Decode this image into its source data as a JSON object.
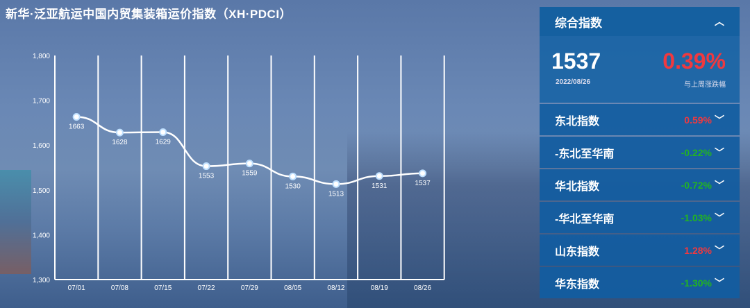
{
  "title": "新华·泛亚航运中国内贸集装箱运价指数（XH·PDCI）",
  "chart_data": {
    "type": "line",
    "categories": [
      "07/01",
      "07/08",
      "07/15",
      "07/22",
      "07/29",
      "08/05",
      "08/12",
      "08/19",
      "08/26"
    ],
    "values": [
      1663,
      1628,
      1629,
      1553,
      1559,
      1530,
      1513,
      1531,
      1537
    ],
    "yticks": [
      "1,300",
      "1,400",
      "1,500",
      "1,600",
      "1,700",
      "1,800"
    ],
    "ylim": [
      1300,
      1800
    ],
    "grid": "vertical",
    "smooth": true
  },
  "panel": {
    "header": "综合指数",
    "value": "1537",
    "date": "2022/08/26",
    "change": "0.39%",
    "change_label": "与上周涨跌幅",
    "rows": [
      {
        "label": "东北指数",
        "value": "0.59%",
        "color": "#f0393f"
      },
      {
        "label": "-东北至华南",
        "value": "-0.22%",
        "color": "#22b422"
      },
      {
        "label": "华北指数",
        "value": "-0.72%",
        "color": "#22b422"
      },
      {
        "label": "-华北至华南",
        "value": "-1.03%",
        "color": "#22b422"
      },
      {
        "label": "山东指数",
        "value": "1.28%",
        "color": "#f0393f"
      },
      {
        "label": "华东指数",
        "value": "-1.30%",
        "color": "#22b422"
      }
    ]
  }
}
